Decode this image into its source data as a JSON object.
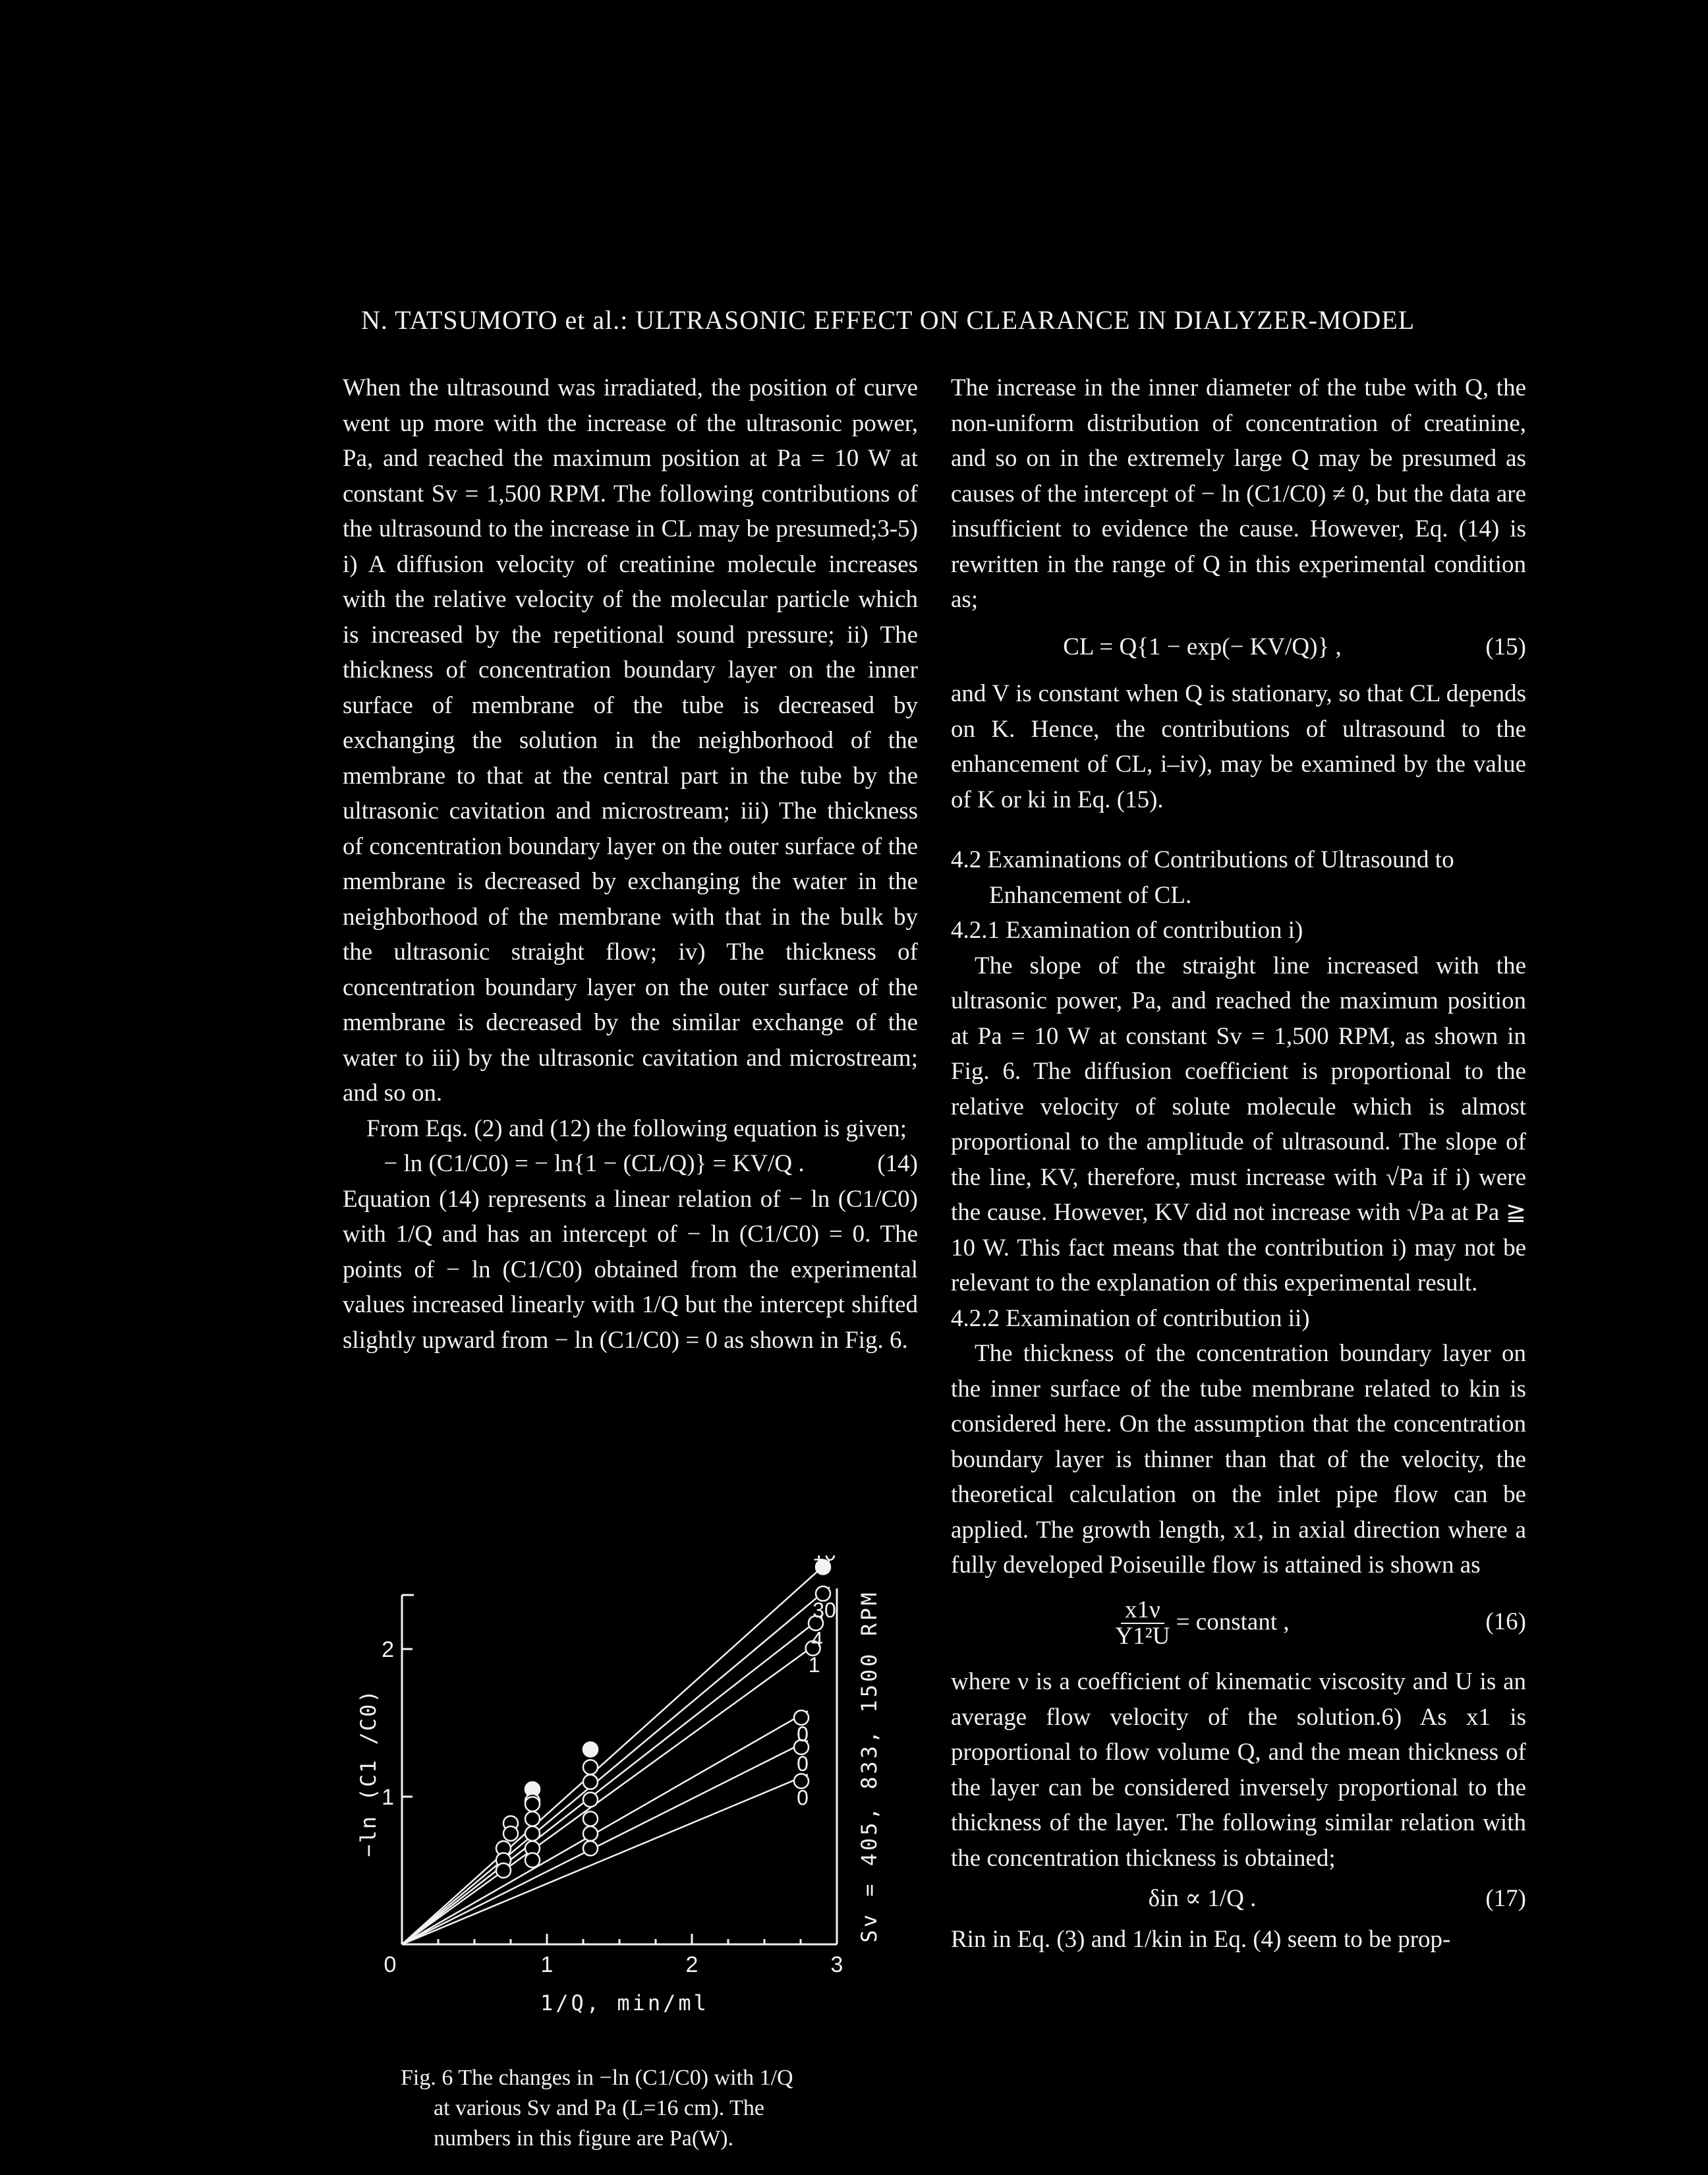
{
  "header": {
    "running_title": "N. TATSUMOTO et al.: ULTRASONIC EFFECT ON CLEARANCE IN DIALYZER-MODEL"
  },
  "left_column": {
    "para1": "When the ultrasound was irradiated, the position of curve went up more with the increase of the ultrasonic power, Pa, and reached the maximum position at Pa = 10 W at constant Sv = 1,500 RPM. The following contributions of the ultrasound to the increase in CL may be presumed;3-5) i) A diffusion velocity of creatinine molecule increases with the relative velocity of the molecular particle which is increased by the repetitional sound pressure; ii) The thickness of concentration boundary layer on the inner surface of membrane of the tube is decreased by exchanging the solution in the neighborhood of the membrane to that at the central part in the tube by the ultrasonic cavitation and microstream; iii) The thickness of concentration boundary layer on the outer surface of the membrane is decreased by exchanging the water in the neighborhood of the membrane with that in the bulk by the ultrasonic straight flow; iv) The thickness of concentration boundary layer on the outer surface of the membrane is decreased by the similar exchange of the water to iii) by the ultrasonic cavitation and microstream; and so on.",
    "para2": "From Eqs. (2) and (12) the following equation is given;",
    "eq14": "− ln (C1/C0) = − ln{1 − (CL/Q)} = KV/Q .",
    "eq14_num": "(14)",
    "para3": "Equation (14) represents a linear relation of − ln (C1/C0) with 1/Q and has an intercept of − ln (C1/C0) = 0. The points of − ln (C1/C0) obtained from the experimental values increased linearly with 1/Q but the intercept shifted slightly upward from − ln (C1/C0) = 0 as shown in Fig. 6."
  },
  "right_column": {
    "para1": "The increase in the inner diameter of the tube with Q, the non-uniform distribution of concentration of creatinine, and so on in the extremely large Q may be presumed as causes of the intercept of − ln (C1/C0) ≠ 0, but the data are insufficient to evidence the cause. However, Eq. (14) is rewritten in the range of Q in this experimental condition as;",
    "eq15": "CL = Q{1 − exp(− KV/Q)} ,",
    "eq15_num": "(15)",
    "para2": "and V is constant when Q is stationary, so that CL depends on K. Hence, the contributions of ultrasound to the enhancement of CL, i–iv), may be examined by the value of K or ki in Eq. (15).",
    "sec42": "4.2 Examinations of Contributions of Ultrasound to Enhancement of CL.",
    "sec421": "4.2.1 Examination of contribution i)",
    "para3": "The slope of the straight line increased with the ultrasonic power, Pa, and reached the maximum position at Pa = 10 W at constant Sv = 1,500 RPM, as shown in Fig. 6. The diffusion coefficient is proportional to the relative velocity of solute molecule which is almost proportional to the amplitude of ultrasound. The slope of the line, KV, therefore, must increase with √Pa if i) were the cause. However, KV did not increase with √Pa at Pa ≧ 10 W. This fact means that the contribution i) may not be relevant to the explanation of this experimental result.",
    "sec422": "4.2.2 Examination of contribution ii)",
    "para4": "The thickness of the concentration boundary layer on the inner surface of the tube membrane related to kin is considered here. On the assumption that the concentration boundary layer is thinner than that of the velocity, the theoretical calculation on the inlet pipe flow can be applied. The growth length, x1, in axial direction where a fully developed Poiseuille flow is attained is shown as",
    "eq16_numerator": "x1ν",
    "eq16_denominator": "Y1²U",
    "eq16_rhs": "= constant ,",
    "eq16_num": "(16)",
    "para5": "where ν is a coefficient of kinematic viscosity and U is an average flow velocity of the solution.6) As x1 is proportional to flow volume Q, and the mean thickness of the layer can be considered inversely proportional to the thickness of the layer. The following similar relation with the concentration thickness is obtained;",
    "eq17": "δin ∝ 1/Q .",
    "eq17_num": "(17)",
    "para6": "Rin in Eq. (3) and 1/kin in Eq. (4) seem to be prop-"
  },
  "figure": {
    "caption_line1": "Fig. 6  The changes in −ln (C1/C0) with 1/Q",
    "caption_line2": "at various Sv and Pa (L=16 cm). The",
    "caption_line3": "numbers in this figure are Pa(W).",
    "y_axis_label": "−ln (C1 /C0)",
    "x_axis_label": "1/Q, min/ml",
    "right_label": "Sv = 405, 833, 1500 RPM",
    "line_labels": [
      "10",
      "30",
      "4",
      "1",
      "0",
      "0",
      "0"
    ]
  },
  "chart_data": {
    "type": "scatter",
    "xlabel": "1/Q, min/ml",
    "ylabel": "−ln (C1 /C0)",
    "xlim": [
      0,
      3
    ],
    "ylim": [
      0,
      2.5
    ],
    "x_ticks": [
      "0",
      "1",
      "2",
      "3"
    ],
    "y_ticks": [
      "0",
      "1",
      "2"
    ],
    "series": [
      {
        "name": "10",
        "x": [
          0.9,
          1.3
        ],
        "y": [
          1.05,
          1.32
        ],
        "line_end": [
          2.95,
          2.6
        ]
      },
      {
        "name": "30",
        "x": [
          0.9,
          1.3
        ],
        "y": [
          0.97,
          1.2
        ],
        "line_end": [
          2.95,
          2.42
        ]
      },
      {
        "name": "4",
        "x": [
          0.75,
          0.9,
          1.3
        ],
        "y": [
          0.82,
          0.95,
          1.1
        ],
        "line_end": [
          2.9,
          2.22
        ]
      },
      {
        "name": "1",
        "x": [
          0.75,
          0.9,
          1.3
        ],
        "y": [
          0.75,
          0.85,
          0.98
        ],
        "line_end": [
          2.88,
          2.05
        ]
      },
      {
        "name": "0",
        "x": [
          0.7,
          0.9,
          1.3
        ],
        "y": [
          0.65,
          0.75,
          0.85
        ],
        "line_end": [
          2.8,
          1.58
        ]
      },
      {
        "name": "0",
        "x": [
          0.7,
          0.9,
          1.3
        ],
        "y": [
          0.57,
          0.65,
          0.75
        ],
        "line_end": [
          2.8,
          1.38
        ]
      },
      {
        "name": "0",
        "x": [
          0.7,
          0.9,
          1.3
        ],
        "y": [
          0.5,
          0.57,
          0.65
        ],
        "line_end": [
          2.8,
          1.15
        ]
      }
    ]
  }
}
